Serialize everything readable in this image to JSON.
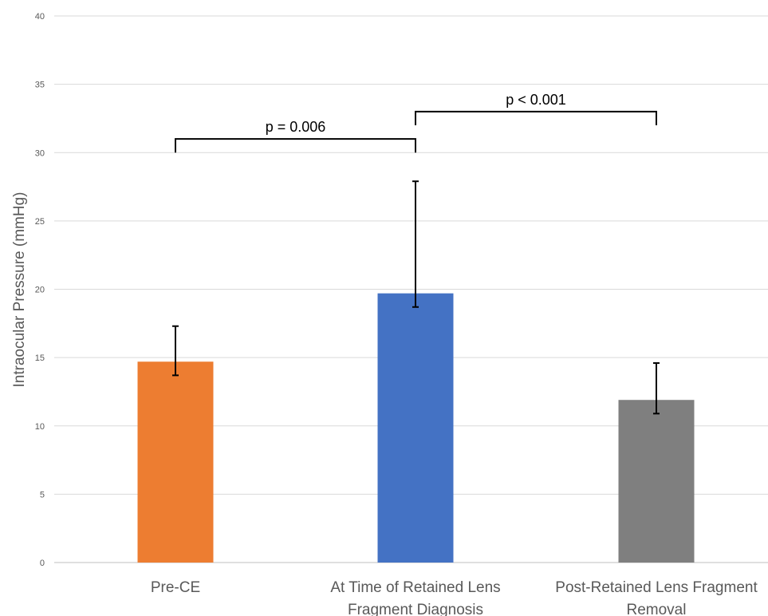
{
  "chart_data": {
    "type": "bar",
    "title": "",
    "xlabel": "",
    "ylabel": "Intraocular Pressure (mmHg)",
    "ylim": [
      0,
      40
    ],
    "yticks": [
      0,
      5,
      10,
      15,
      20,
      25,
      30,
      35,
      40
    ],
    "grid": true,
    "categories": [
      [
        "Pre-CE"
      ],
      [
        "At Time of Retained Lens",
        "Fragment Diagnosis"
      ],
      [
        "Post-Retained Lens Fragment",
        "Removal"
      ]
    ],
    "values": [
      14.7,
      19.7,
      11.9
    ],
    "error_upper": [
      17.3,
      27.9,
      14.6
    ],
    "error_lower": [
      13.7,
      18.7,
      10.9
    ],
    "colors": [
      "#ED7D31",
      "#4472C4",
      "#7F7F7F"
    ],
    "annotations": [
      {
        "text": "p = 0.006",
        "from": 0,
        "to": 1,
        "y": 31,
        "tick_bottom": 30
      },
      {
        "text": "p < 0.001",
        "from": 1,
        "to": 2,
        "y": 33,
        "tick_bottom": 32
      }
    ]
  }
}
